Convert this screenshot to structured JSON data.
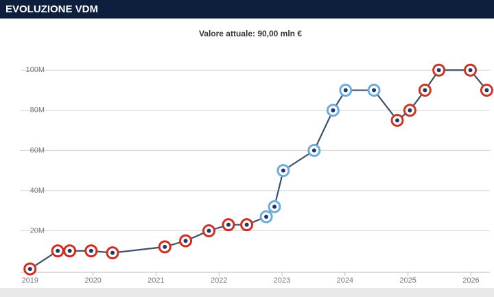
{
  "header": {
    "title": "EVOLUZIONE VDM"
  },
  "chart_data": {
    "type": "line",
    "subtitle": "Valore attuale: 90,00 mln €",
    "x": [
      2019.0,
      2019.44,
      2019.63,
      2019.97,
      2020.31,
      2021.14,
      2021.47,
      2021.84,
      2022.15,
      2022.44,
      2022.75,
      2022.88,
      2023.02,
      2023.51,
      2023.81,
      2024.01,
      2024.46,
      2024.83,
      2025.03,
      2025.27,
      2025.49,
      2025.99,
      2026.25
    ],
    "series": [
      {
        "color": "#3d5068",
        "values": [
          1,
          10,
          10,
          10,
          9,
          12,
          15,
          20,
          23,
          23,
          27,
          32,
          50,
          60,
          80,
          90,
          90,
          75,
          80,
          90,
          100,
          100,
          90
        ],
        "point_colors": [
          "#d52b1e",
          "#d52b1e",
          "#d52b1e",
          "#d52b1e",
          "#d52b1e",
          "#d52b1e",
          "#d52b1e",
          "#d52b1e",
          "#d52b1e",
          "#d52b1e",
          "#6cabdd",
          "#6cabdd",
          "#6cabdd",
          "#6cabdd",
          "#6cabdd",
          "#6cabdd",
          "#6cabdd",
          "#cb3524",
          "#cb3524",
          "#cb3524",
          "#cb3524",
          "#cb3524",
          "#cb3524"
        ]
      }
    ],
    "xlim": [
      2018.85,
      2026.3
    ],
    "xticks": [
      2019,
      2020,
      2021,
      2022,
      2023,
      2024,
      2025,
      2026
    ],
    "ylim": [
      0,
      110
    ],
    "yticks": [
      {
        "value": 20,
        "label": "20M"
      },
      {
        "value": 40,
        "label": "40M"
      },
      {
        "value": 60,
        "label": "60M"
      },
      {
        "value": 80,
        "label": "80M"
      },
      {
        "value": 100,
        "label": "100M"
      }
    ],
    "grid": true
  }
}
